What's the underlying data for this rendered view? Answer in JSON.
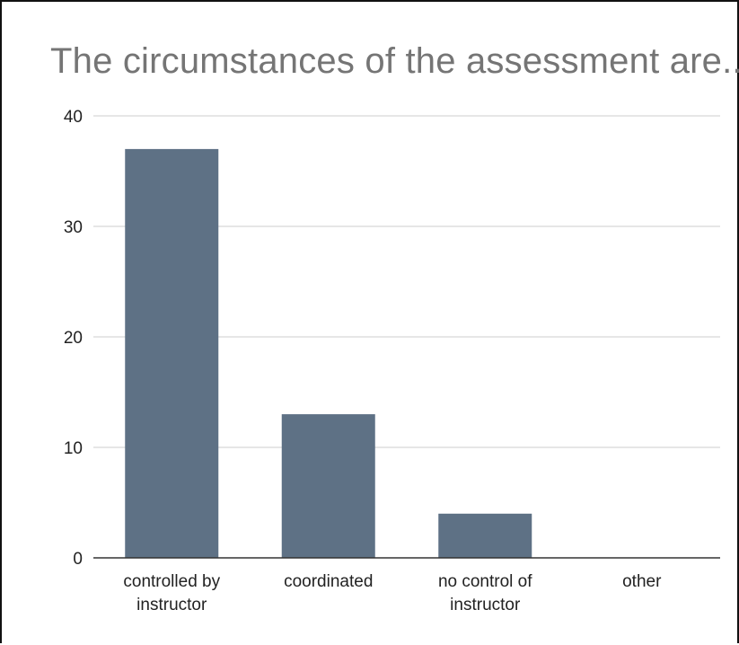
{
  "chart_data": {
    "type": "bar",
    "title": "The circumstances of the assessment are...",
    "categories": [
      [
        "controlled by",
        "instructor"
      ],
      [
        "coordinated"
      ],
      [
        "no control of",
        "instructor"
      ],
      [
        "other"
      ]
    ],
    "values": [
      37,
      13,
      4,
      0
    ],
    "ylim": [
      0,
      40
    ],
    "yticks": [
      0,
      10,
      20,
      30,
      40
    ],
    "xlabel": "",
    "ylabel": "",
    "grid": true,
    "legend": "none",
    "colors": {
      "bar": "#5e7185",
      "grid": "#cccccc",
      "axis": "#333333",
      "title": "#757575",
      "text": "#222222"
    }
  }
}
